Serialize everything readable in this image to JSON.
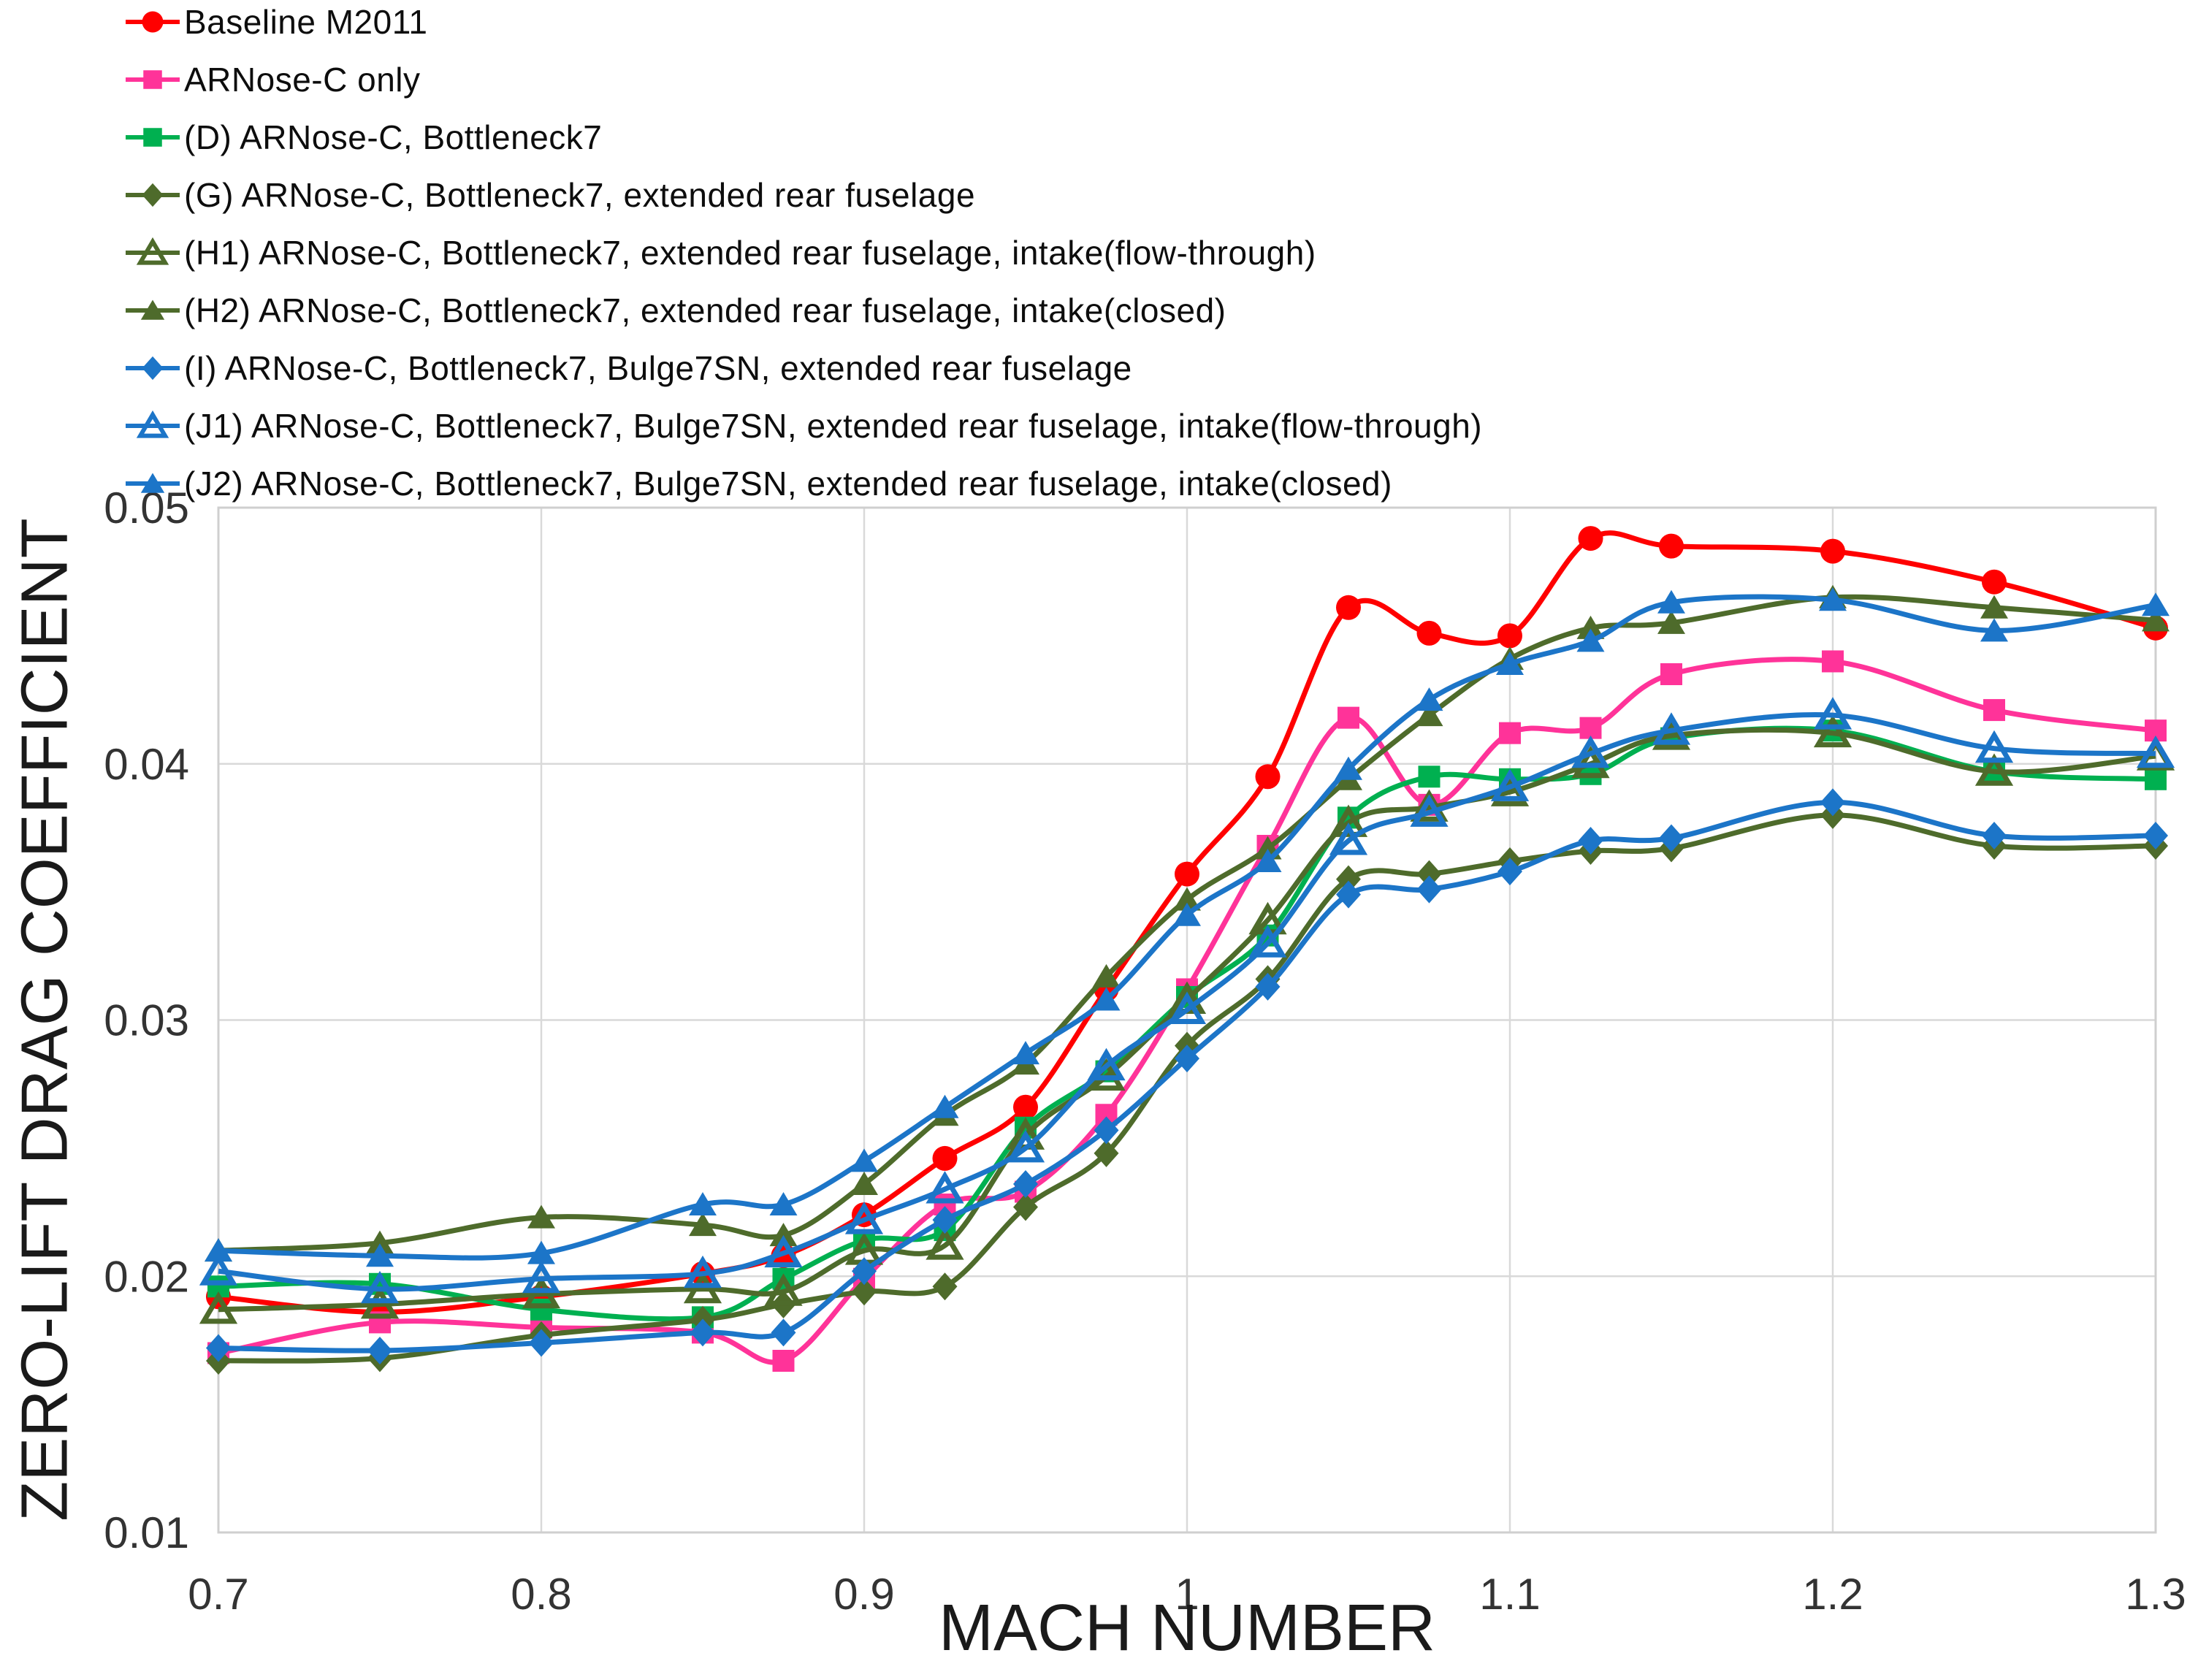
{
  "page": {
    "background": "#FFFFFF",
    "grid_color": "#D9D9D9",
    "tick_color": "#333333",
    "title_color": "#1A1A1A"
  },
  "chart_data": {
    "type": "line",
    "title": "",
    "xlabel": "MACH NUMBER",
    "ylabel": "ZERO-LIFT DRAG COEFFICIENT",
    "xlim": [
      0.7,
      1.3
    ],
    "ylim": [
      0.01,
      0.05
    ],
    "grid": true,
    "legend_position": "top-left",
    "x_ticks": [
      0.7,
      0.8,
      0.9,
      1,
      1.1,
      1.2,
      1.3
    ],
    "x_tick_labels": [
      "0.7",
      "0.8",
      "0.9",
      "1",
      "1.1",
      "1.2",
      "1.3"
    ],
    "y_ticks": [
      0.01,
      0.02,
      0.03,
      0.04,
      0.05
    ],
    "y_tick_labels": [
      "0.01",
      "0.02",
      "0.03",
      "0.04",
      "0.05"
    ],
    "x": [
      0.7,
      0.75,
      0.8,
      0.85,
      0.875,
      0.9,
      0.925,
      0.95,
      0.975,
      1.0,
      1.025,
      1.05,
      1.075,
      1.1,
      1.125,
      1.15,
      1.2,
      1.25,
      1.3
    ],
    "series": [
      {
        "name": "Baseline M2011",
        "color": "#FF0000",
        "marker": "circle",
        "values": [
          0.0192,
          0.0186,
          0.0192,
          0.0201,
          0.0208,
          0.0224,
          0.0246,
          0.0266,
          0.0312,
          0.0357,
          0.0395,
          0.0461,
          0.0451,
          0.045,
          0.0488,
          0.0485,
          0.0483,
          0.0471,
          0.0453
        ]
      },
      {
        "name": "ARNose-C only",
        "color": "#FF3399",
        "marker": "square",
        "values": [
          0.017,
          0.0182,
          0.018,
          0.0178,
          0.0167,
          0.0199,
          0.0228,
          0.0233,
          0.0263,
          0.0312,
          0.0368,
          0.0418,
          0.0384,
          0.0412,
          0.0414,
          0.0435,
          0.044,
          0.0421,
          0.0413
        ]
      },
      {
        "name": "(D) ARNose-C, Bottleneck7",
        "color": "#00B050",
        "marker": "square",
        "values": [
          0.0196,
          0.0197,
          0.0187,
          0.0184,
          0.0199,
          0.0214,
          0.0218,
          0.0258,
          0.028,
          0.0309,
          0.0333,
          0.0379,
          0.0395,
          0.0394,
          0.0396,
          0.041,
          0.0413,
          0.0397,
          0.0394
        ]
      },
      {
        "name": "(G) ARNose-C, Bottleneck7, extended rear fuselage",
        "color": "#4E6B2B",
        "marker": "diamond",
        "values": [
          0.0167,
          0.0168,
          0.0177,
          0.0183,
          0.0189,
          0.0194,
          0.0196,
          0.0227,
          0.0248,
          0.029,
          0.0316,
          0.0355,
          0.0357,
          0.0362,
          0.0366,
          0.0367,
          0.038,
          0.0368,
          0.0368
        ]
      },
      {
        "name": "(H1) ARNose-C, Bottleneck7, extended rear fuselage, intake(flow-through)",
        "color": "#4E6B2B",
        "marker": "triangle-open",
        "values": [
          0.0187,
          0.0189,
          0.0193,
          0.0195,
          0.0194,
          0.021,
          0.0212,
          0.0255,
          0.0278,
          0.0308,
          0.0339,
          0.0377,
          0.0383,
          0.0389,
          0.04,
          0.0411,
          0.0412,
          0.0397,
          0.0403
        ]
      },
      {
        "name": "(H2) ARNose-C, Bottleneck7, extended rear fuselage, intake(closed)",
        "color": "#4E6B2B",
        "marker": "triangle",
        "values": [
          0.021,
          0.0213,
          0.0223,
          0.022,
          0.0216,
          0.0236,
          0.0263,
          0.0283,
          0.0317,
          0.0347,
          0.0367,
          0.0394,
          0.0419,
          0.0441,
          0.0453,
          0.0455,
          0.0465,
          0.0461,
          0.0456
        ]
      },
      {
        "name": "(I) ARNose-C, Bottleneck7, Bulge7SN, extended rear fuselage",
        "color": "#1C75C8",
        "marker": "diamond",
        "values": [
          0.0172,
          0.0171,
          0.0174,
          0.0178,
          0.0178,
          0.0202,
          0.0222,
          0.0236,
          0.0257,
          0.0285,
          0.0313,
          0.0349,
          0.0351,
          0.0358,
          0.037,
          0.0371,
          0.0385,
          0.0372,
          0.0372
        ]
      },
      {
        "name": "(J1) ARNose-C, Bottleneck7, Bulge7SN, extended rear fuselage, intake(flow-through)",
        "color": "#1C75C8",
        "marker": "triangle-open",
        "values": [
          0.0202,
          0.0195,
          0.0199,
          0.0201,
          0.0209,
          0.0222,
          0.0234,
          0.025,
          0.0282,
          0.0304,
          0.033,
          0.037,
          0.0381,
          0.0391,
          0.0404,
          0.0413,
          0.0419,
          0.0406,
          0.0404
        ]
      },
      {
        "name": "(J2) ARNose-C, Bottleneck7, Bulge7SN, extended rear fuselage, intake(closed)",
        "color": "#1C75C8",
        "marker": "triangle",
        "values": [
          0.021,
          0.0208,
          0.0209,
          0.0228,
          0.0228,
          0.0245,
          0.0266,
          0.0287,
          0.0308,
          0.0341,
          0.0362,
          0.0398,
          0.0425,
          0.0439,
          0.0448,
          0.0463,
          0.0464,
          0.0452,
          0.0462
        ]
      }
    ]
  }
}
